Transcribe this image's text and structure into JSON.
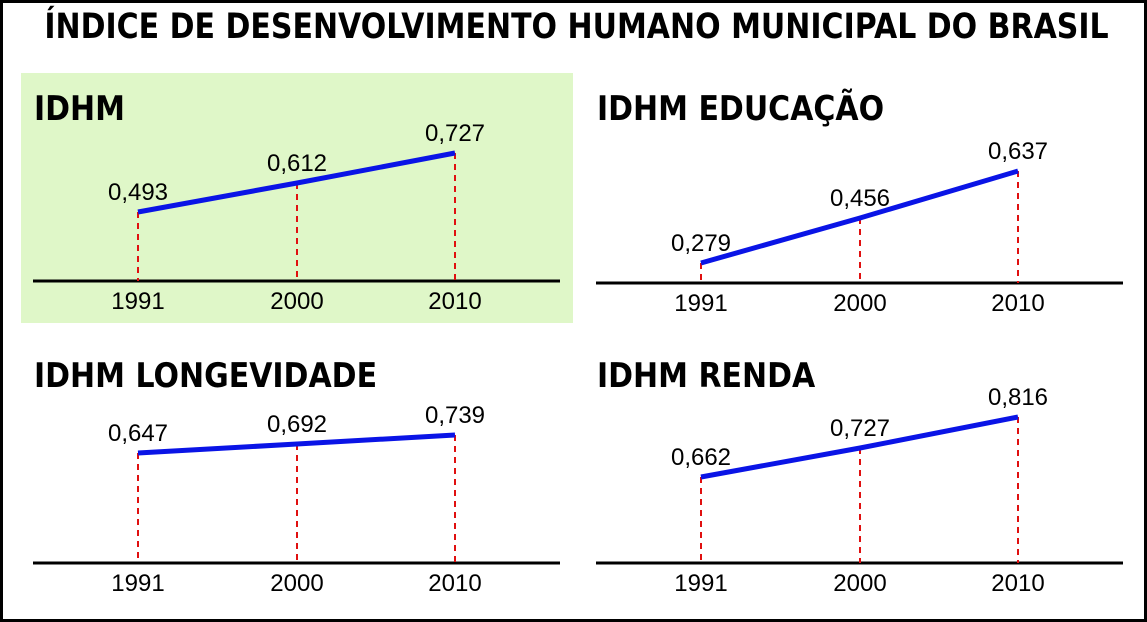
{
  "title": "ÍNDICE DE DESENVOLVIMENTO HUMANO MUNICIPAL DO BRASIL",
  "colors": {
    "line": "#0a14e6",
    "guide": "#e01010",
    "highlight_bg": "#dff7c8",
    "axis": "#000000"
  },
  "chart_data": [
    {
      "type": "line",
      "title": "IDHM",
      "highlighted": true,
      "categories": [
        "1991",
        "2000",
        "2010"
      ],
      "values": [
        0.493,
        0.612,
        0.727
      ],
      "labels": [
        "0,493",
        "0,612",
        "0,727"
      ]
    },
    {
      "type": "line",
      "title": "IDHM EDUCAÇÃO",
      "highlighted": false,
      "categories": [
        "1991",
        "2000",
        "2010"
      ],
      "values": [
        0.279,
        0.456,
        0.637
      ],
      "labels": [
        "0,279",
        "0,456",
        "0,637"
      ]
    },
    {
      "type": "line",
      "title": "IDHM LONGEVIDADE",
      "highlighted": false,
      "categories": [
        "1991",
        "2000",
        "2010"
      ],
      "values": [
        0.647,
        0.692,
        0.739
      ],
      "labels": [
        "0,647",
        "0,692",
        "0,739"
      ]
    },
    {
      "type": "line",
      "title": "IDHM RENDA",
      "highlighted": false,
      "categories": [
        "1991",
        "2000",
        "2010"
      ],
      "values": [
        0.662,
        0.727,
        0.816
      ],
      "labels": [
        "0,662",
        "0,727",
        "0,816"
      ]
    }
  ]
}
